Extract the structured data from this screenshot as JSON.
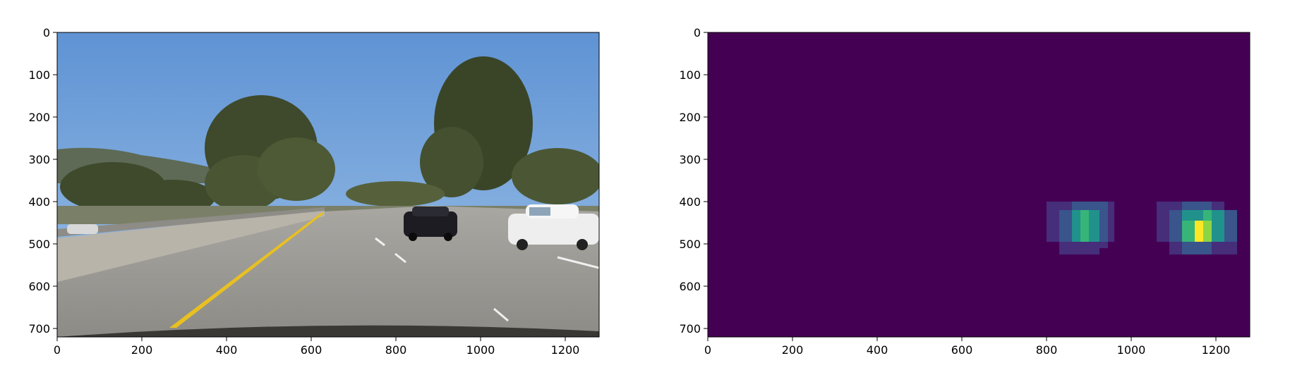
{
  "chart_data": [
    {
      "type": "image",
      "subject": "road photograph",
      "xlim": [
        0,
        1280
      ],
      "ylim": [
        720,
        0
      ],
      "xticks": [
        0,
        200,
        400,
        600,
        800,
        1000,
        1200
      ],
      "yticks": [
        0,
        100,
        200,
        300,
        400,
        500,
        600,
        700
      ],
      "colors": {
        "sky": "#6fa0d8",
        "road": "#9a9892",
        "lane_line": "#e8c020"
      }
    },
    {
      "type": "heatmap",
      "colormap": "viridis",
      "xlim": [
        0,
        1280
      ],
      "ylim": [
        720,
        0
      ],
      "xticks": [
        0,
        200,
        400,
        600,
        800,
        1000,
        1200
      ],
      "yticks": [
        0,
        100,
        200,
        300,
        400,
        500,
        600,
        700
      ],
      "vmin": 0,
      "vmax": 6,
      "cells": [
        {
          "x0": 800,
          "x1": 830,
          "y0": 400,
          "y1": 495,
          "v": 1
        },
        {
          "x0": 830,
          "x1": 860,
          "y0": 400,
          "y1": 420,
          "v": 1
        },
        {
          "x0": 830,
          "x1": 860,
          "y0": 420,
          "y1": 495,
          "v": 2
        },
        {
          "x0": 830,
          "x1": 860,
          "y0": 495,
          "y1": 525,
          "v": 1
        },
        {
          "x0": 860,
          "x1": 880,
          "y0": 400,
          "y1": 420,
          "v": 2
        },
        {
          "x0": 860,
          "x1": 880,
          "y0": 420,
          "y1": 495,
          "v": 3
        },
        {
          "x0": 860,
          "x1": 880,
          "y0": 495,
          "y1": 525,
          "v": 1
        },
        {
          "x0": 880,
          "x1": 900,
          "y0": 400,
          "y1": 420,
          "v": 2
        },
        {
          "x0": 880,
          "x1": 900,
          "y0": 420,
          "y1": 495,
          "v": 4
        },
        {
          "x0": 880,
          "x1": 900,
          "y0": 495,
          "y1": 525,
          "v": 1
        },
        {
          "x0": 900,
          "x1": 925,
          "y0": 400,
          "y1": 420,
          "v": 2
        },
        {
          "x0": 900,
          "x1": 925,
          "y0": 420,
          "y1": 495,
          "v": 3
        },
        {
          "x0": 900,
          "x1": 925,
          "y0": 495,
          "y1": 525,
          "v": 1
        },
        {
          "x0": 925,
          "x1": 945,
          "y0": 400,
          "y1": 495,
          "v": 2
        },
        {
          "x0": 925,
          "x1": 945,
          "y0": 495,
          "y1": 510,
          "v": 1
        },
        {
          "x0": 945,
          "x1": 960,
          "y0": 400,
          "y1": 495,
          "v": 1
        },
        {
          "x0": 1060,
          "x1": 1090,
          "y0": 400,
          "y1": 495,
          "v": 1
        },
        {
          "x0": 1090,
          "x1": 1120,
          "y0": 400,
          "y1": 420,
          "v": 1
        },
        {
          "x0": 1090,
          "x1": 1120,
          "y0": 420,
          "y1": 495,
          "v": 2
        },
        {
          "x0": 1090,
          "x1": 1120,
          "y0": 495,
          "y1": 525,
          "v": 1
        },
        {
          "x0": 1120,
          "x1": 1150,
          "y0": 400,
          "y1": 420,
          "v": 2
        },
        {
          "x0": 1120,
          "x1": 1150,
          "y0": 420,
          "y1": 445,
          "v": 3
        },
        {
          "x0": 1120,
          "x1": 1150,
          "y0": 445,
          "y1": 495,
          "v": 4
        },
        {
          "x0": 1120,
          "x1": 1150,
          "y0": 495,
          "y1": 525,
          "v": 2
        },
        {
          "x0": 1150,
          "x1": 1170,
          "y0": 400,
          "y1": 420,
          "v": 2
        },
        {
          "x0": 1150,
          "x1": 1170,
          "y0": 420,
          "y1": 445,
          "v": 3
        },
        {
          "x0": 1150,
          "x1": 1170,
          "y0": 445,
          "y1": 495,
          "v": 6
        },
        {
          "x0": 1150,
          "x1": 1170,
          "y0": 495,
          "y1": 525,
          "v": 2
        },
        {
          "x0": 1170,
          "x1": 1190,
          "y0": 400,
          "y1": 420,
          "v": 2
        },
        {
          "x0": 1170,
          "x1": 1190,
          "y0": 420,
          "y1": 445,
          "v": 4
        },
        {
          "x0": 1170,
          "x1": 1190,
          "y0": 445,
          "y1": 495,
          "v": 5
        },
        {
          "x0": 1170,
          "x1": 1190,
          "y0": 495,
          "y1": 525,
          "v": 2
        },
        {
          "x0": 1190,
          "x1": 1220,
          "y0": 400,
          "y1": 420,
          "v": 1
        },
        {
          "x0": 1190,
          "x1": 1220,
          "y0": 420,
          "y1": 495,
          "v": 3
        },
        {
          "x0": 1190,
          "x1": 1220,
          "y0": 495,
          "y1": 525,
          "v": 1
        },
        {
          "x0": 1220,
          "x1": 1250,
          "y0": 420,
          "y1": 495,
          "v": 2
        },
        {
          "x0": 1220,
          "x1": 1250,
          "y0": 495,
          "y1": 525,
          "v": 1
        }
      ]
    }
  ]
}
